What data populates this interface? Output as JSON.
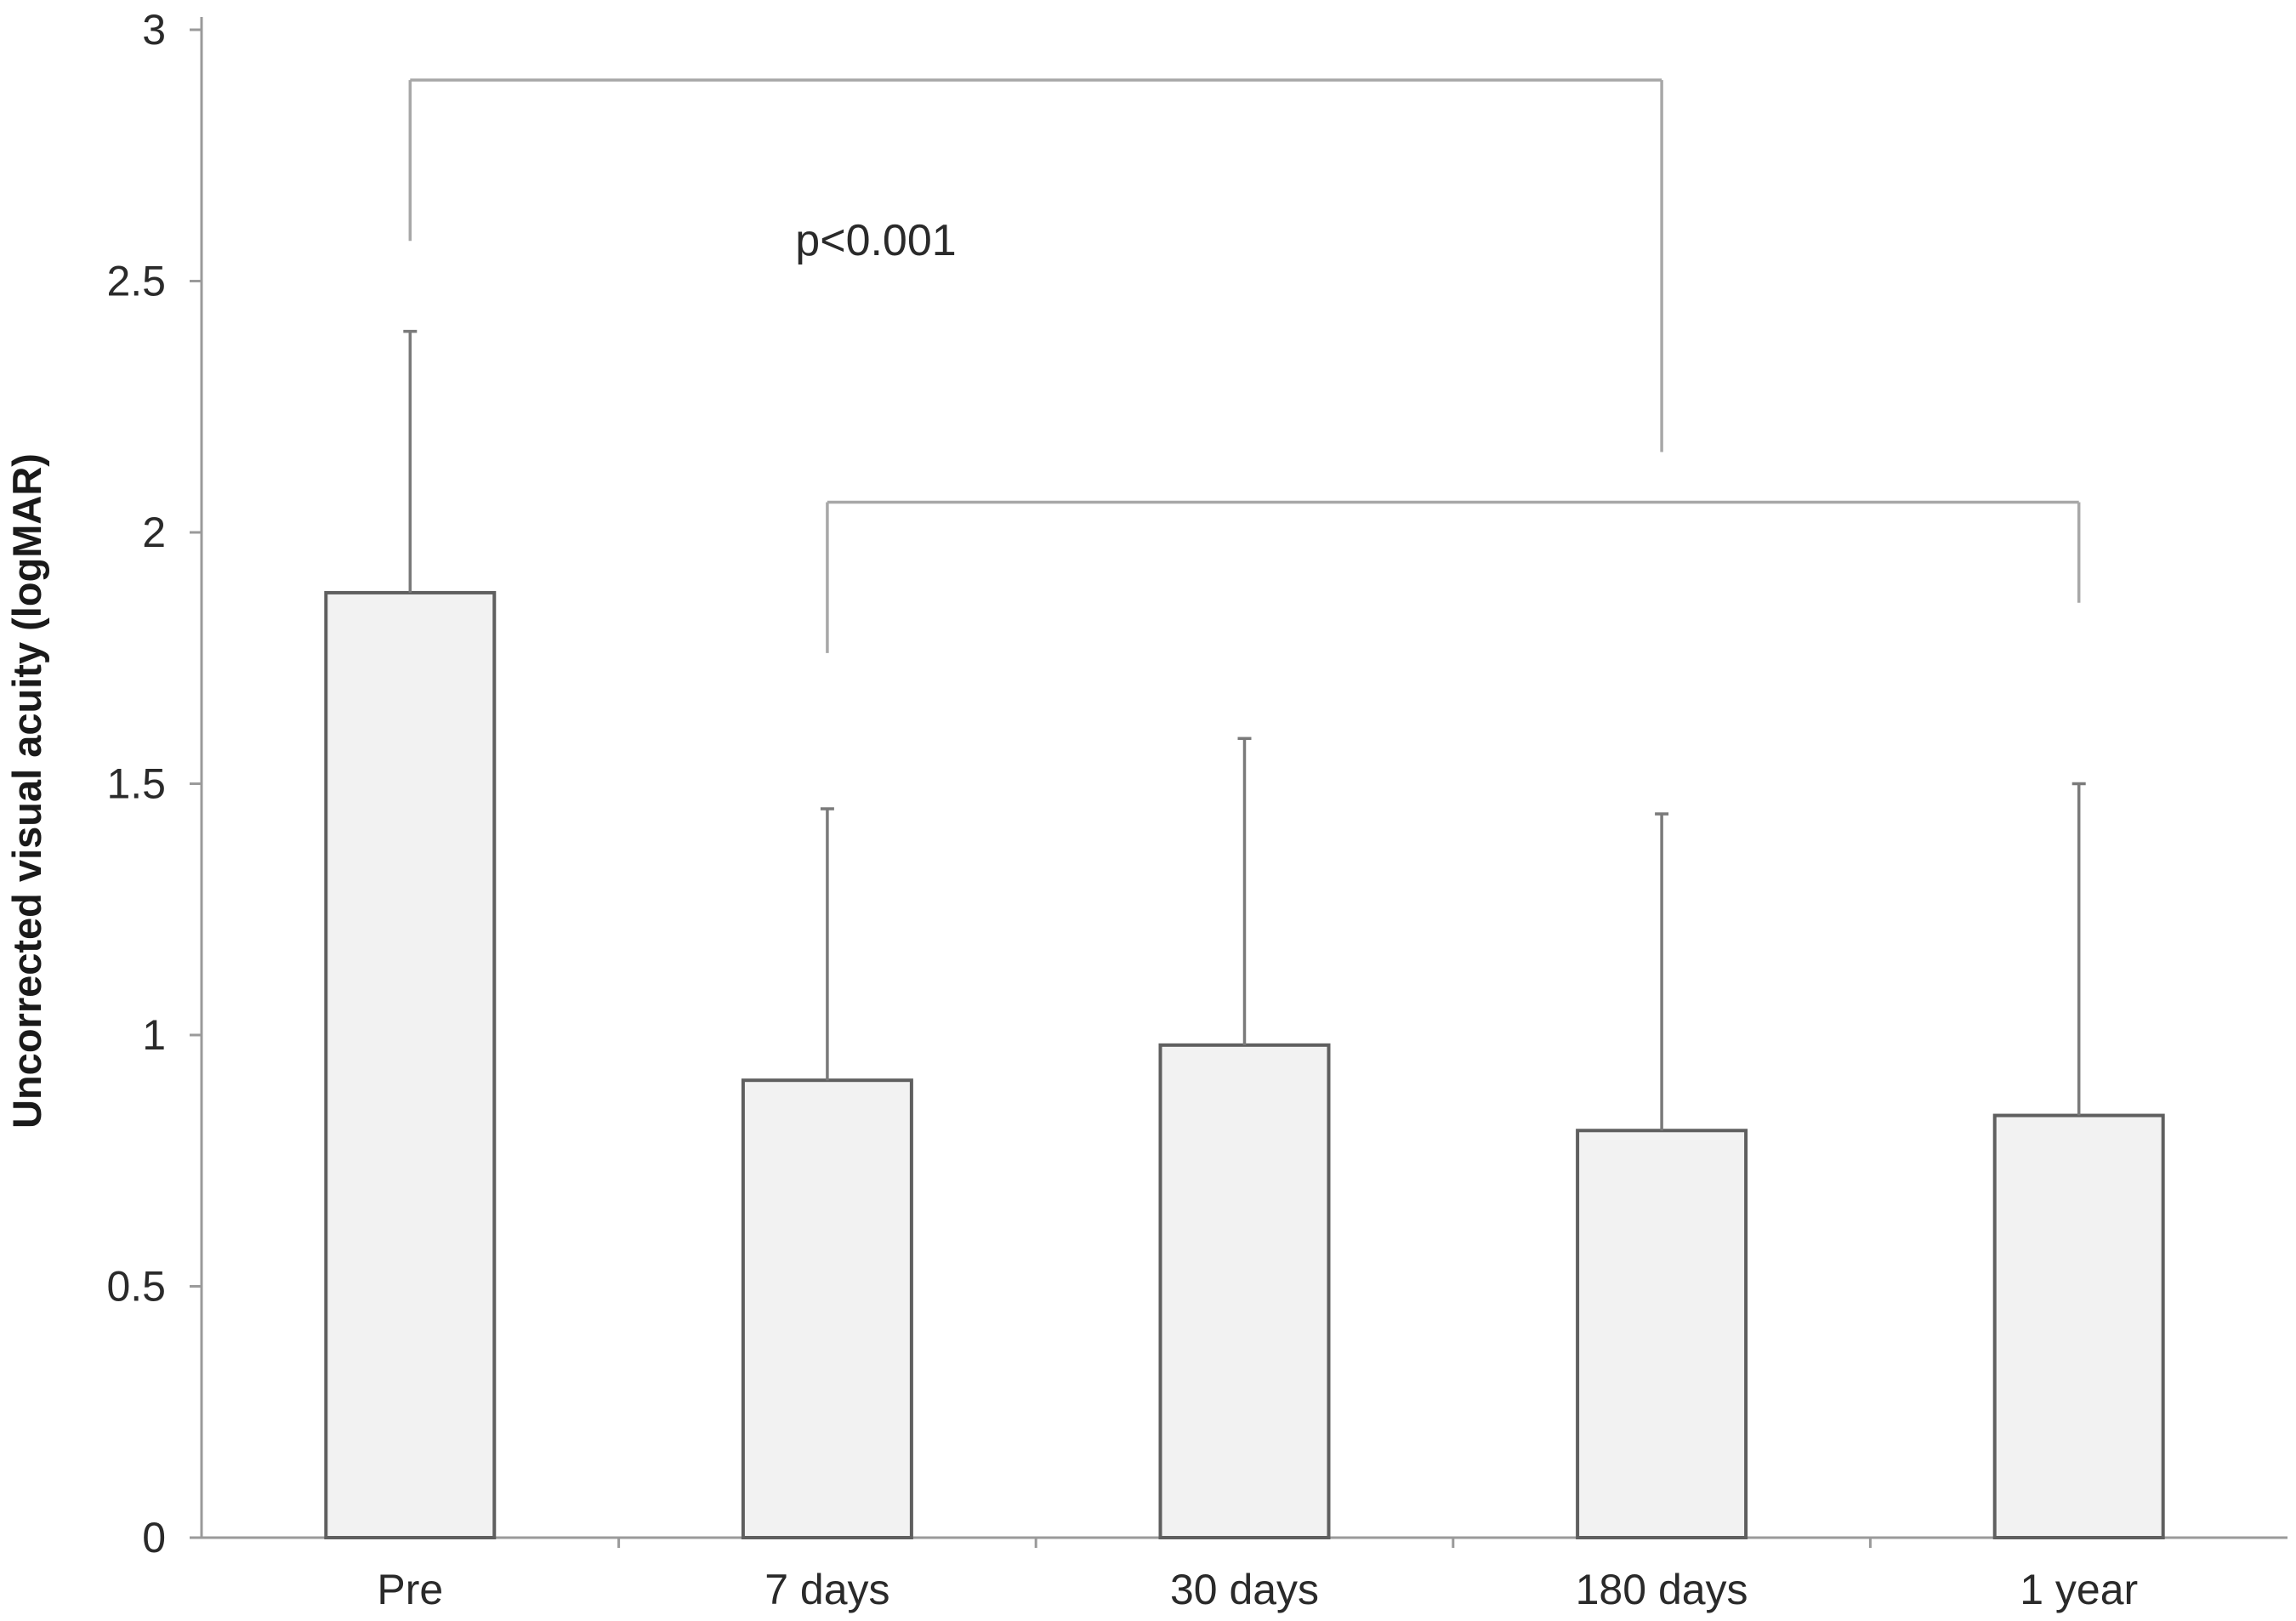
{
  "chart_data": {
    "type": "bar",
    "title": "",
    "xlabel": "",
    "ylabel": "Uncorrected visual acuity (logMAR)",
    "categories": [
      "Pre",
      "7 days",
      "30 days",
      "180 days",
      "1 year"
    ],
    "values": [
      1.88,
      0.91,
      0.98,
      0.81,
      0.84
    ],
    "error_upper": [
      2.4,
      1.45,
      1.59,
      1.44,
      1.5
    ],
    "ylim": [
      0,
      3
    ],
    "yticks": [
      0,
      0.5,
      1,
      1.5,
      2,
      2.5,
      3
    ],
    "ytick_labels": [
      "0",
      "0.5",
      "1",
      "1.5",
      "2",
      "2.5",
      "3"
    ],
    "grid": false,
    "legend": "none",
    "bar_fill": "#f2f2f2",
    "bar_stroke": "#5f5f5f",
    "annotations": {
      "p_value": "p<0.001",
      "outer_bracket": {
        "from": "Pre",
        "to": "180 days",
        "y": 2.9,
        "left_drop": 2.58,
        "right_drop": 2.16
      },
      "inner_bracket": {
        "from": "7 days",
        "to": "1 year",
        "y": 2.06,
        "left_drop": 1.76,
        "right_drop": 1.86
      }
    }
  }
}
